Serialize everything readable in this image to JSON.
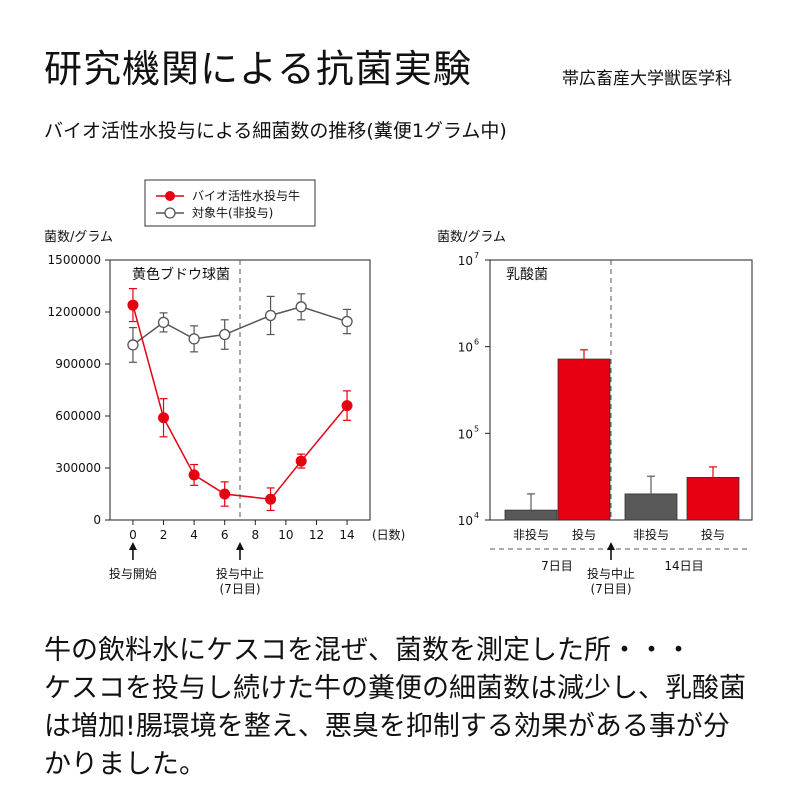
{
  "header": {
    "title": "研究機関による抗菌実験",
    "institution": "帯広畜産大学獣医学科",
    "subtitle": "バイオ活性水投与による細菌数の推移(糞便1グラム中)"
  },
  "caption": {
    "lines": [
      "牛の飲料水にケスコを混ぜ、菌数を測定した所・・・",
      "ケスコを投与し続けた牛の糞便の細菌数は減少し、乳酸菌",
      "は増加!腸環境を整え、悪臭を抑制する効果がある事が分",
      "かりました。"
    ]
  },
  "chart_data": [
    {
      "type": "line",
      "title": "黄色ブドウ球菌",
      "ylabel": "菌数/グラム",
      "xunit": "(日数)",
      "ylim": [
        0,
        1500000
      ],
      "yticks": [
        0,
        300000,
        600000,
        900000,
        1200000,
        1500000
      ],
      "xticks": [
        0,
        2,
        4,
        6,
        8,
        10,
        12,
        14
      ],
      "xlim": [
        -1.5,
        15.5
      ],
      "divider_x": 7,
      "legend_position": "top-left",
      "series": [
        {
          "name": "バイオ活性水投与牛",
          "color": "#e60012",
          "marker": "filled",
          "x": [
            0,
            2,
            4,
            6,
            9,
            11,
            14
          ],
          "y": [
            1240000,
            590000,
            260000,
            150000,
            120000,
            340000,
            660000
          ],
          "err": [
            95000,
            110000,
            60000,
            70000,
            65000,
            40000,
            85000
          ]
        },
        {
          "name": "対象牛(非投与)",
          "color": "#555555",
          "marker": "open",
          "x": [
            0,
            2,
            4,
            6,
            9,
            11,
            14
          ],
          "y": [
            1010000,
            1140000,
            1045000,
            1070000,
            1180000,
            1230000,
            1145000
          ],
          "err": [
            100000,
            55000,
            75000,
            85000,
            110000,
            75000,
            70000
          ]
        }
      ],
      "annotations": [
        {
          "x": 0,
          "lines": [
            "投与開始"
          ]
        },
        {
          "x": 7,
          "lines": [
            "投与中止",
            "(7日目)"
          ]
        }
      ]
    },
    {
      "type": "bar",
      "title": "乳酸菌",
      "ylabel": "菌数/グラム",
      "scale": "log",
      "ylim": [
        10000,
        10000000
      ],
      "yticks": [
        {
          "base": "10",
          "exp": "4"
        },
        {
          "base": "10",
          "exp": "5"
        },
        {
          "base": "10",
          "exp": "6"
        },
        {
          "base": "10",
          "exp": "7"
        }
      ],
      "categories": [
        "非投与",
        "投与",
        "非投与",
        "投与"
      ],
      "values": [
        13000,
        720000,
        20000,
        31000
      ],
      "err_upper": [
        20000,
        920000,
        32000,
        41000
      ],
      "colors": [
        "#595959",
        "#e60012",
        "#595959",
        "#e60012"
      ],
      "groups": [
        {
          "label": "7日目"
        },
        {
          "label": "14日目"
        }
      ],
      "annotation": {
        "lines": [
          "投与中止",
          "(7日目)"
        ]
      }
    }
  ]
}
